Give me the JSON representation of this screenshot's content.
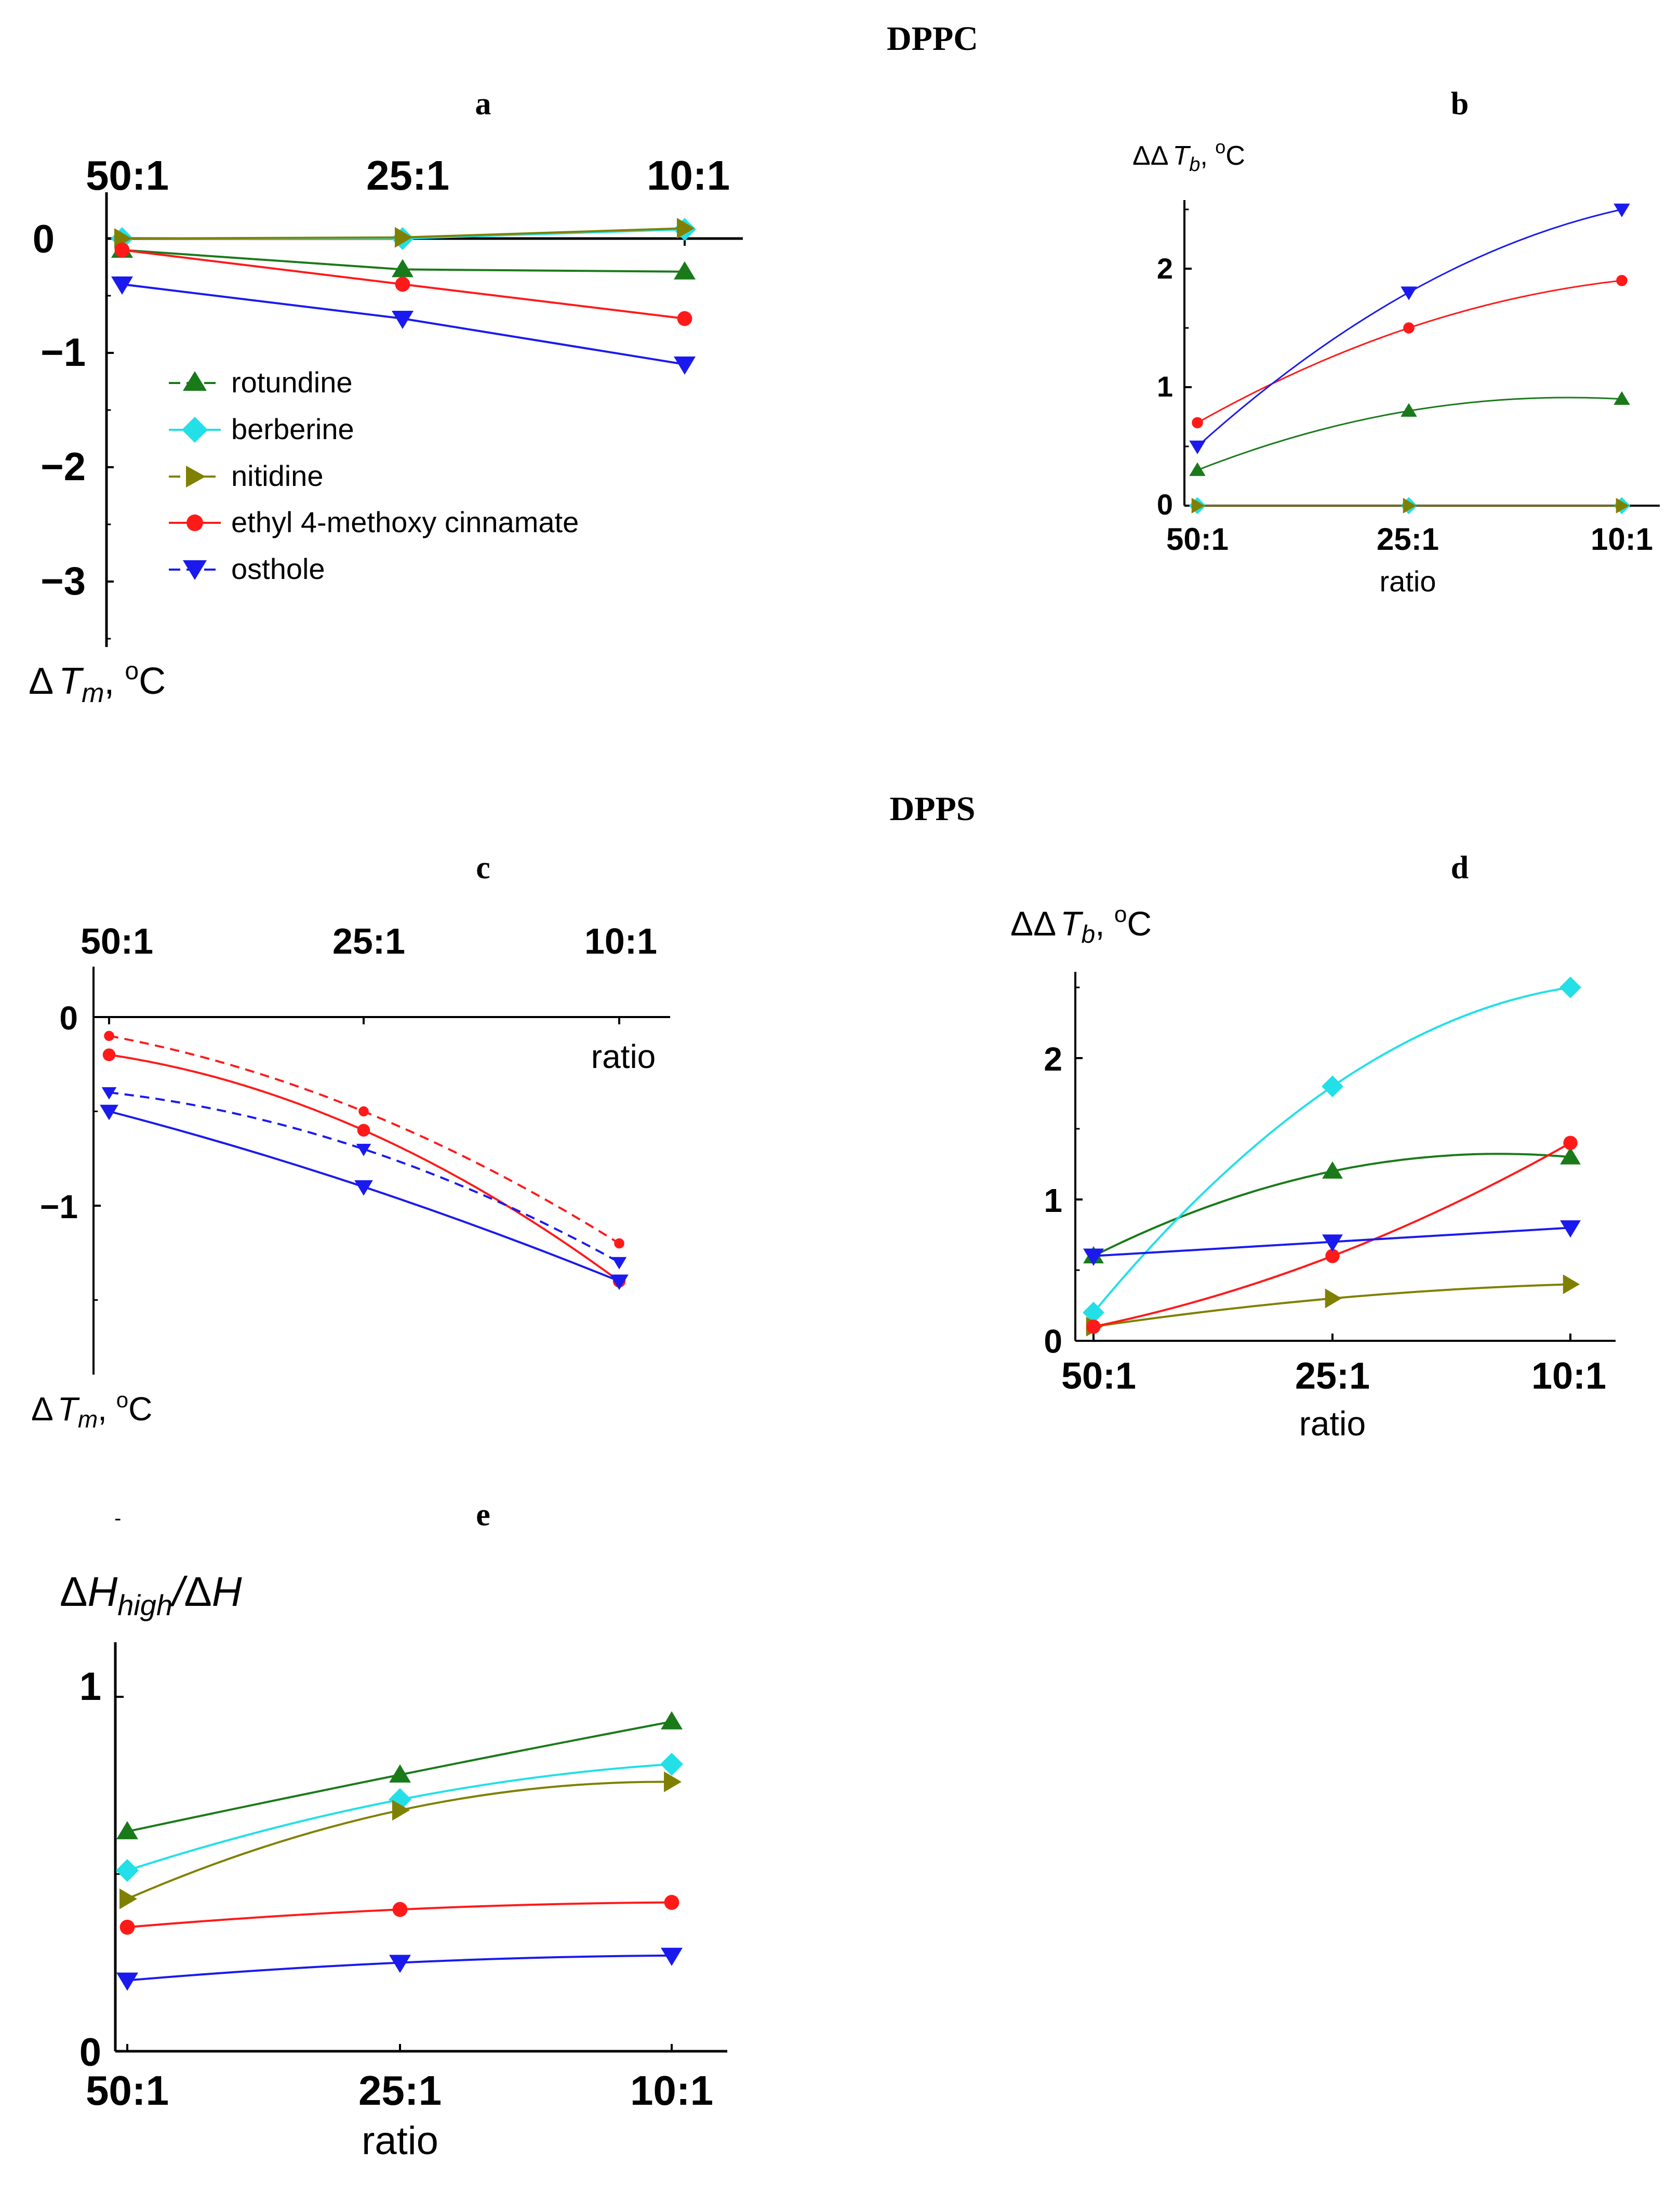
{
  "headings": {
    "top": "DPPC",
    "middle": "DPPS"
  },
  "legend": {
    "rotundine": "rotundine",
    "berberine": "berberine",
    "nitidine": "nitidine",
    "ethyl": "ethyl 4-methoxy cinnamate",
    "osthole": "osthole"
  },
  "colors": {
    "rotundine": "#1a7a1a",
    "berberine": "#22dfe8",
    "nitidine": "#808000",
    "ethyl": "#ff1a1a",
    "osthole": "#1a1aee"
  },
  "chart_data": [
    {
      "panel": "a",
      "type": "line",
      "categories": [
        "50:1",
        "25:1",
        "10:1"
      ],
      "ylim": [
        -3.5,
        0.2
      ],
      "yticks": [
        "0",
        "−1",
        "−2",
        "−3"
      ],
      "ylabel": "ΔTm, °C",
      "series": [
        {
          "name": "rotundine",
          "values": [
            -0.1,
            -0.27,
            -0.29
          ]
        },
        {
          "name": "berberine",
          "values": [
            0,
            0,
            0.08
          ]
        },
        {
          "name": "nitidine",
          "values": [
            0,
            0.01,
            0.09
          ]
        },
        {
          "name": "ethyl 4-methoxy cinnamate",
          "values": [
            -0.1,
            -0.4,
            -0.7
          ]
        },
        {
          "name": "osthole",
          "values": [
            -0.4,
            -0.7,
            -1.1
          ]
        }
      ]
    },
    {
      "panel": "b",
      "type": "line",
      "categories": [
        "50:1",
        "25:1",
        "10:1"
      ],
      "xlabel": "ratio",
      "ylabel": "ΔΔTb, °C",
      "ylim": [
        0,
        2.6
      ],
      "yticks": [
        "0",
        "1",
        "2"
      ],
      "series": [
        {
          "name": "rotundine",
          "values": [
            0.3,
            0.8,
            0.9
          ]
        },
        {
          "name": "berberine",
          "values": [
            0,
            0,
            0
          ]
        },
        {
          "name": "nitidine",
          "values": [
            0,
            0,
            0
          ]
        },
        {
          "name": "ethyl 4-methoxy cinnamate",
          "values": [
            0.7,
            1.5,
            1.9
          ]
        },
        {
          "name": "osthole",
          "values": [
            0.5,
            1.8,
            2.5
          ]
        }
      ]
    },
    {
      "panel": "c",
      "type": "line",
      "categories": [
        "50:1",
        "25:1",
        "10:1"
      ],
      "xlabel": "ratio",
      "ylabel": "ΔTm, °C",
      "ylim": [
        -1.6,
        0.1
      ],
      "yticks": [
        "0",
        "−1"
      ],
      "series": [
        {
          "name": "ethyl 4-methoxy cinnamate",
          "dashed": false,
          "values": [
            -0.2,
            -0.6,
            -1.4
          ]
        },
        {
          "name": "ethyl 4-methoxy cinnamate",
          "dashed": true,
          "values": [
            -0.1,
            -0.5,
            -1.2
          ]
        },
        {
          "name": "osthole",
          "dashed": false,
          "values": [
            -0.5,
            -0.9,
            -1.4
          ]
        },
        {
          "name": "osthole",
          "dashed": true,
          "values": [
            -0.4,
            -0.7,
            -1.3
          ]
        }
      ]
    },
    {
      "panel": "d",
      "type": "line",
      "categories": [
        "50:1",
        "25:1",
        "10:1"
      ],
      "xlabel": "ratio",
      "ylabel": "ΔΔTb, °C",
      "ylim": [
        0,
        2.6
      ],
      "yticks": [
        "0",
        "1",
        "2"
      ],
      "series": [
        {
          "name": "rotundine",
          "values": [
            0.6,
            1.2,
            1.3
          ]
        },
        {
          "name": "berberine",
          "values": [
            0.2,
            1.8,
            2.5
          ]
        },
        {
          "name": "nitidine",
          "values": [
            0.1,
            0.3,
            0.4
          ]
        },
        {
          "name": "ethyl 4-methoxy cinnamate",
          "values": [
            0.1,
            0.6,
            1.4
          ]
        },
        {
          "name": "osthole",
          "values": [
            0.6,
            0.7,
            0.8
          ]
        }
      ]
    },
    {
      "panel": "e",
      "type": "line",
      "categories": [
        "50:1",
        "25:1",
        "10:1"
      ],
      "xlabel": "ratio",
      "ylabel": "ΔHhigh/ΔH",
      "ylim": [
        0,
        1.15
      ],
      "yticks": [
        "0",
        "1"
      ],
      "series": [
        {
          "name": "rotundine",
          "values": [
            0.62,
            0.78,
            0.93
          ]
        },
        {
          "name": "berberine",
          "values": [
            0.51,
            0.71,
            0.81
          ]
        },
        {
          "name": "nitidine",
          "values": [
            0.43,
            0.68,
            0.76
          ]
        },
        {
          "name": "ethyl 4-methoxy cinnamate",
          "values": [
            0.35,
            0.4,
            0.42
          ]
        },
        {
          "name": "osthole",
          "values": [
            0.2,
            0.25,
            0.27
          ]
        }
      ]
    }
  ]
}
